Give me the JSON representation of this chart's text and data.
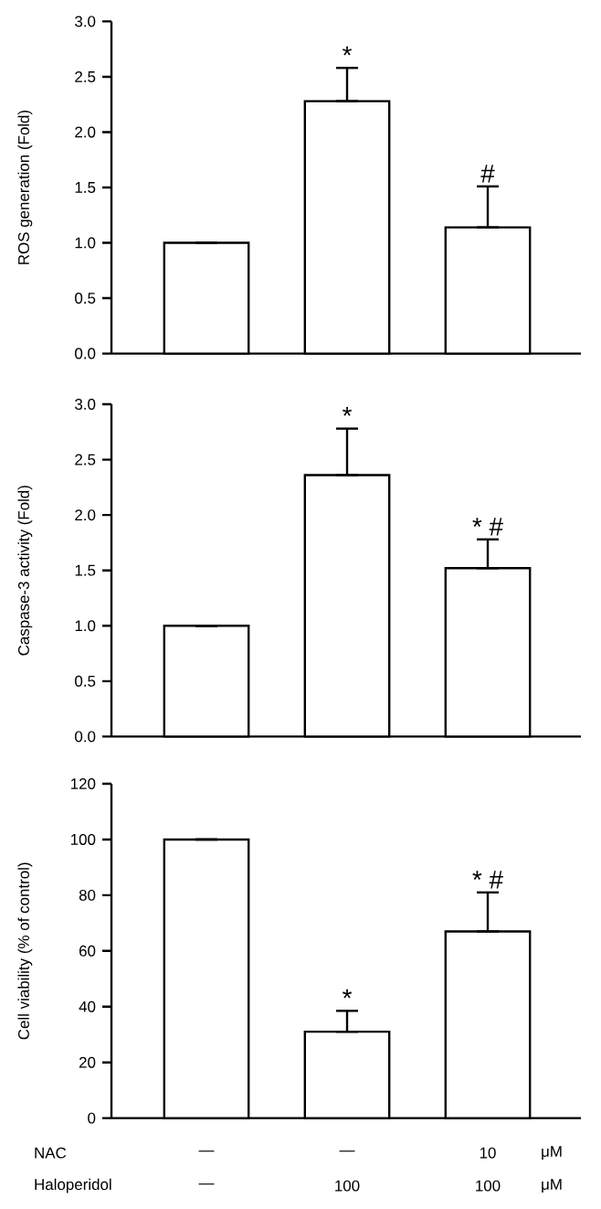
{
  "chart_data": [
    {
      "type": "bar",
      "ylabel": "ROS generation (Fold)",
      "categories": [
        null,
        null,
        null
      ],
      "values": [
        1.0,
        2.28,
        1.14
      ],
      "errors": [
        null,
        [
          2.28,
          2.58
        ],
        [
          1.14,
          1.51
        ]
      ],
      "color": "#ffffff",
      "value_labels": [
        null,
        "*",
        "#"
      ],
      "ylim": [
        0,
        3
      ],
      "yticks": [
        {
          "value": 0,
          "label": "0.0"
        },
        {
          "value": 0.5,
          "label": "0.5"
        },
        {
          "value": 1,
          "label": "1.0"
        },
        {
          "value": 1.5,
          "label": "1.5"
        },
        {
          "value": 2,
          "label": "2.0"
        },
        {
          "value": 2.5,
          "label": "2.5"
        },
        {
          "value": 3,
          "label": "3.0"
        }
      ]
    },
    {
      "type": "bar",
      "ylabel": "Caspase-3 activity (Fold)",
      "categories": [
        null,
        null,
        null
      ],
      "values": [
        1.0,
        2.36,
        1.52
      ],
      "errors": [
        null,
        [
          2.36,
          2.78
        ],
        [
          1.52,
          1.78
        ]
      ],
      "color": "#ffffff",
      "value_labels": [
        null,
        "*",
        "* #"
      ],
      "ylim": [
        0,
        3
      ],
      "yticks": [
        {
          "value": 0,
          "label": "0.0"
        },
        {
          "value": 0.5,
          "label": "0.5"
        },
        {
          "value": 1,
          "label": "1.0"
        },
        {
          "value": 1.5,
          "label": "1.5"
        },
        {
          "value": 2,
          "label": "2.0"
        },
        {
          "value": 2.5,
          "label": "2.5"
        },
        {
          "value": 3,
          "label": "3.0"
        }
      ]
    },
    {
      "type": "bar",
      "ylabel": "Cell viability (% of control)",
      "categories": [
        null,
        null,
        null
      ],
      "values": [
        100,
        31,
        67
      ],
      "errors": [
        null,
        [
          31,
          38.5
        ],
        [
          67,
          81
        ]
      ],
      "color": "#ffffff",
      "value_labels": [
        null,
        "*",
        "* #"
      ],
      "ylim": [
        0,
        120
      ],
      "yticks": [
        0,
        20,
        40,
        60,
        80,
        100,
        120
      ],
      "annotations": [
        "NAC",
        "—",
        "—",
        "10",
        "μM",
        "Haloperidol",
        "—",
        "100",
        "100",
        "μM"
      ]
    }
  ]
}
